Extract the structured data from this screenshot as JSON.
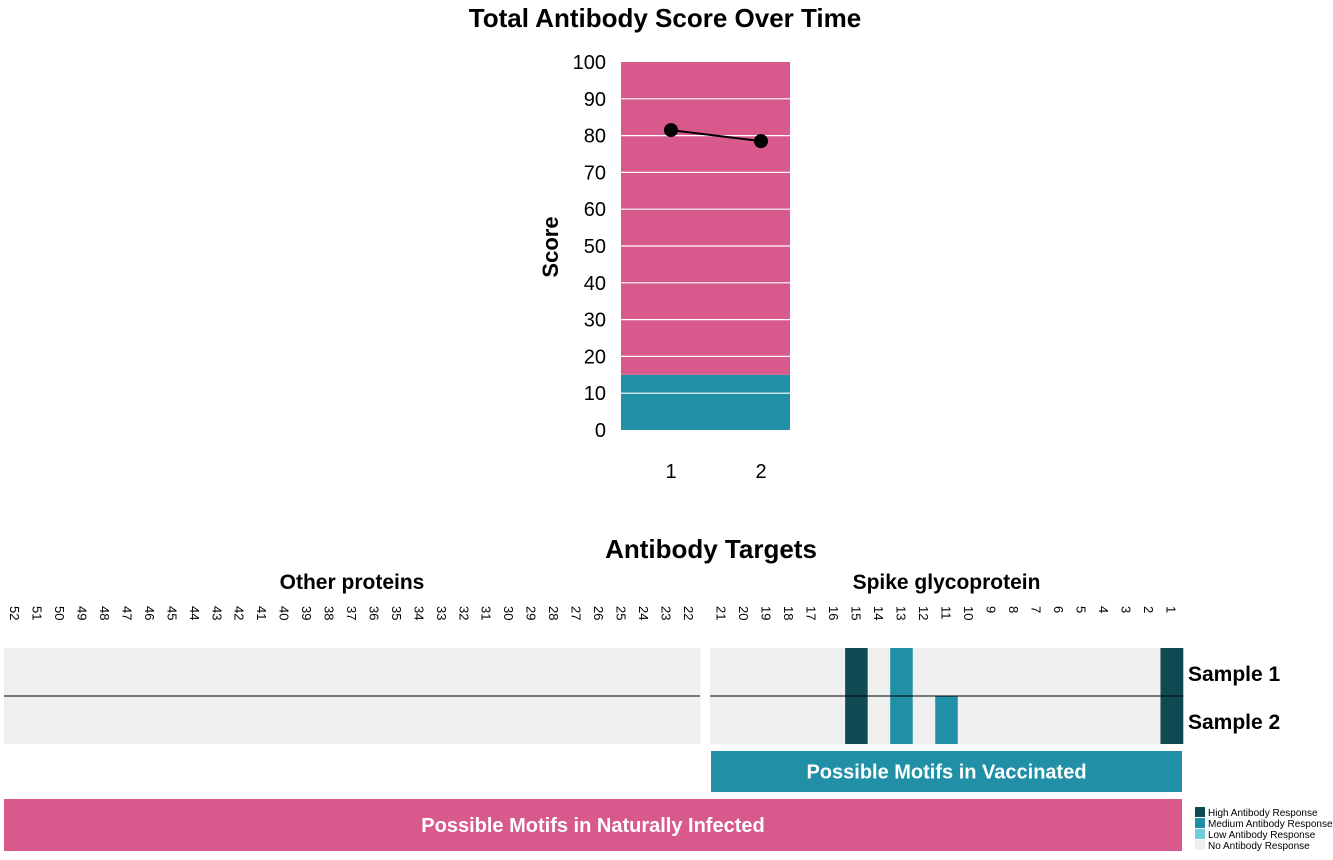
{
  "colors": {
    "pink": "#d85a8d",
    "teal": "#218fa5",
    "high": "#0f4a52",
    "medium": "#218fa5",
    "low": "#6fcfdf",
    "none": "#efefef"
  },
  "chart_data": [
    {
      "type": "line",
      "title": "Total Antibody Score Over Time",
      "xlabel": "",
      "ylabel": "Score",
      "x": [
        1,
        2
      ],
      "y": [
        81.5,
        78.5
      ],
      "ylim": [
        0,
        100
      ],
      "yticks": [
        0,
        10,
        20,
        30,
        40,
        50,
        60,
        70,
        80,
        90,
        100
      ],
      "xticks": [
        "1",
        "2"
      ],
      "background_bands": [
        {
          "from": 0,
          "to": 15,
          "color": "#218fa5"
        },
        {
          "from": 15,
          "to": 100,
          "color": "#d85a8d"
        }
      ],
      "grid": true
    },
    {
      "type": "heatmap",
      "title": "Antibody Targets",
      "facets": [
        {
          "name": "Other proteins",
          "columns": [
            "52",
            "51",
            "50",
            "49",
            "48",
            "47",
            "46",
            "45",
            "44",
            "43",
            "42",
            "41",
            "40",
            "39",
            "38",
            "37",
            "36",
            "35",
            "34",
            "33",
            "32",
            "31",
            "30",
            "29",
            "28",
            "27",
            "26",
            "25",
            "24",
            "23",
            "22"
          ]
        },
        {
          "name": "Spike glycoprotein",
          "columns": [
            "21",
            "20",
            "19",
            "18",
            "17",
            "16",
            "15",
            "14",
            "13",
            "12",
            "11",
            "10",
            "9",
            "8",
            "7",
            "6",
            "5",
            "4",
            "3",
            "2",
            "1"
          ]
        }
      ],
      "rows": [
        "Sample 1",
        "Sample 2"
      ],
      "cells": [
        {
          "row": "Sample 1",
          "column": "15",
          "level": "High Antibody Response"
        },
        {
          "row": "Sample 2",
          "column": "15",
          "level": "High Antibody Response"
        },
        {
          "row": "Sample 1",
          "column": "13",
          "level": "Medium Antibody Response"
        },
        {
          "row": "Sample 2",
          "column": "13",
          "level": "Medium Antibody Response"
        },
        {
          "row": "Sample 2",
          "column": "11",
          "level": "Medium Antibody Response"
        },
        {
          "row": "Sample 1",
          "column": "1",
          "level": "High Antibody Response"
        },
        {
          "row": "Sample 2",
          "column": "1",
          "level": "High Antibody Response"
        }
      ],
      "default_level": "No Antibody Response",
      "bands": [
        {
          "label": "Possible Motifs in Vaccinated",
          "color": "#218fa5",
          "spans": "Spike glycoprotein"
        },
        {
          "label": "Possible Motifs in Naturally Infected",
          "color": "#d85a8d",
          "spans": "all"
        }
      ],
      "legend": [
        {
          "label": "High Antibody Response",
          "color": "#0f4a52"
        },
        {
          "label": "Medium Antibody Response",
          "color": "#218fa5"
        },
        {
          "label": "Low Antibody Response",
          "color": "#6fcfdf"
        },
        {
          "label": "No Antibody Response",
          "color": "#efefef"
        }
      ],
      "legend_position": "bottom-right"
    }
  ]
}
